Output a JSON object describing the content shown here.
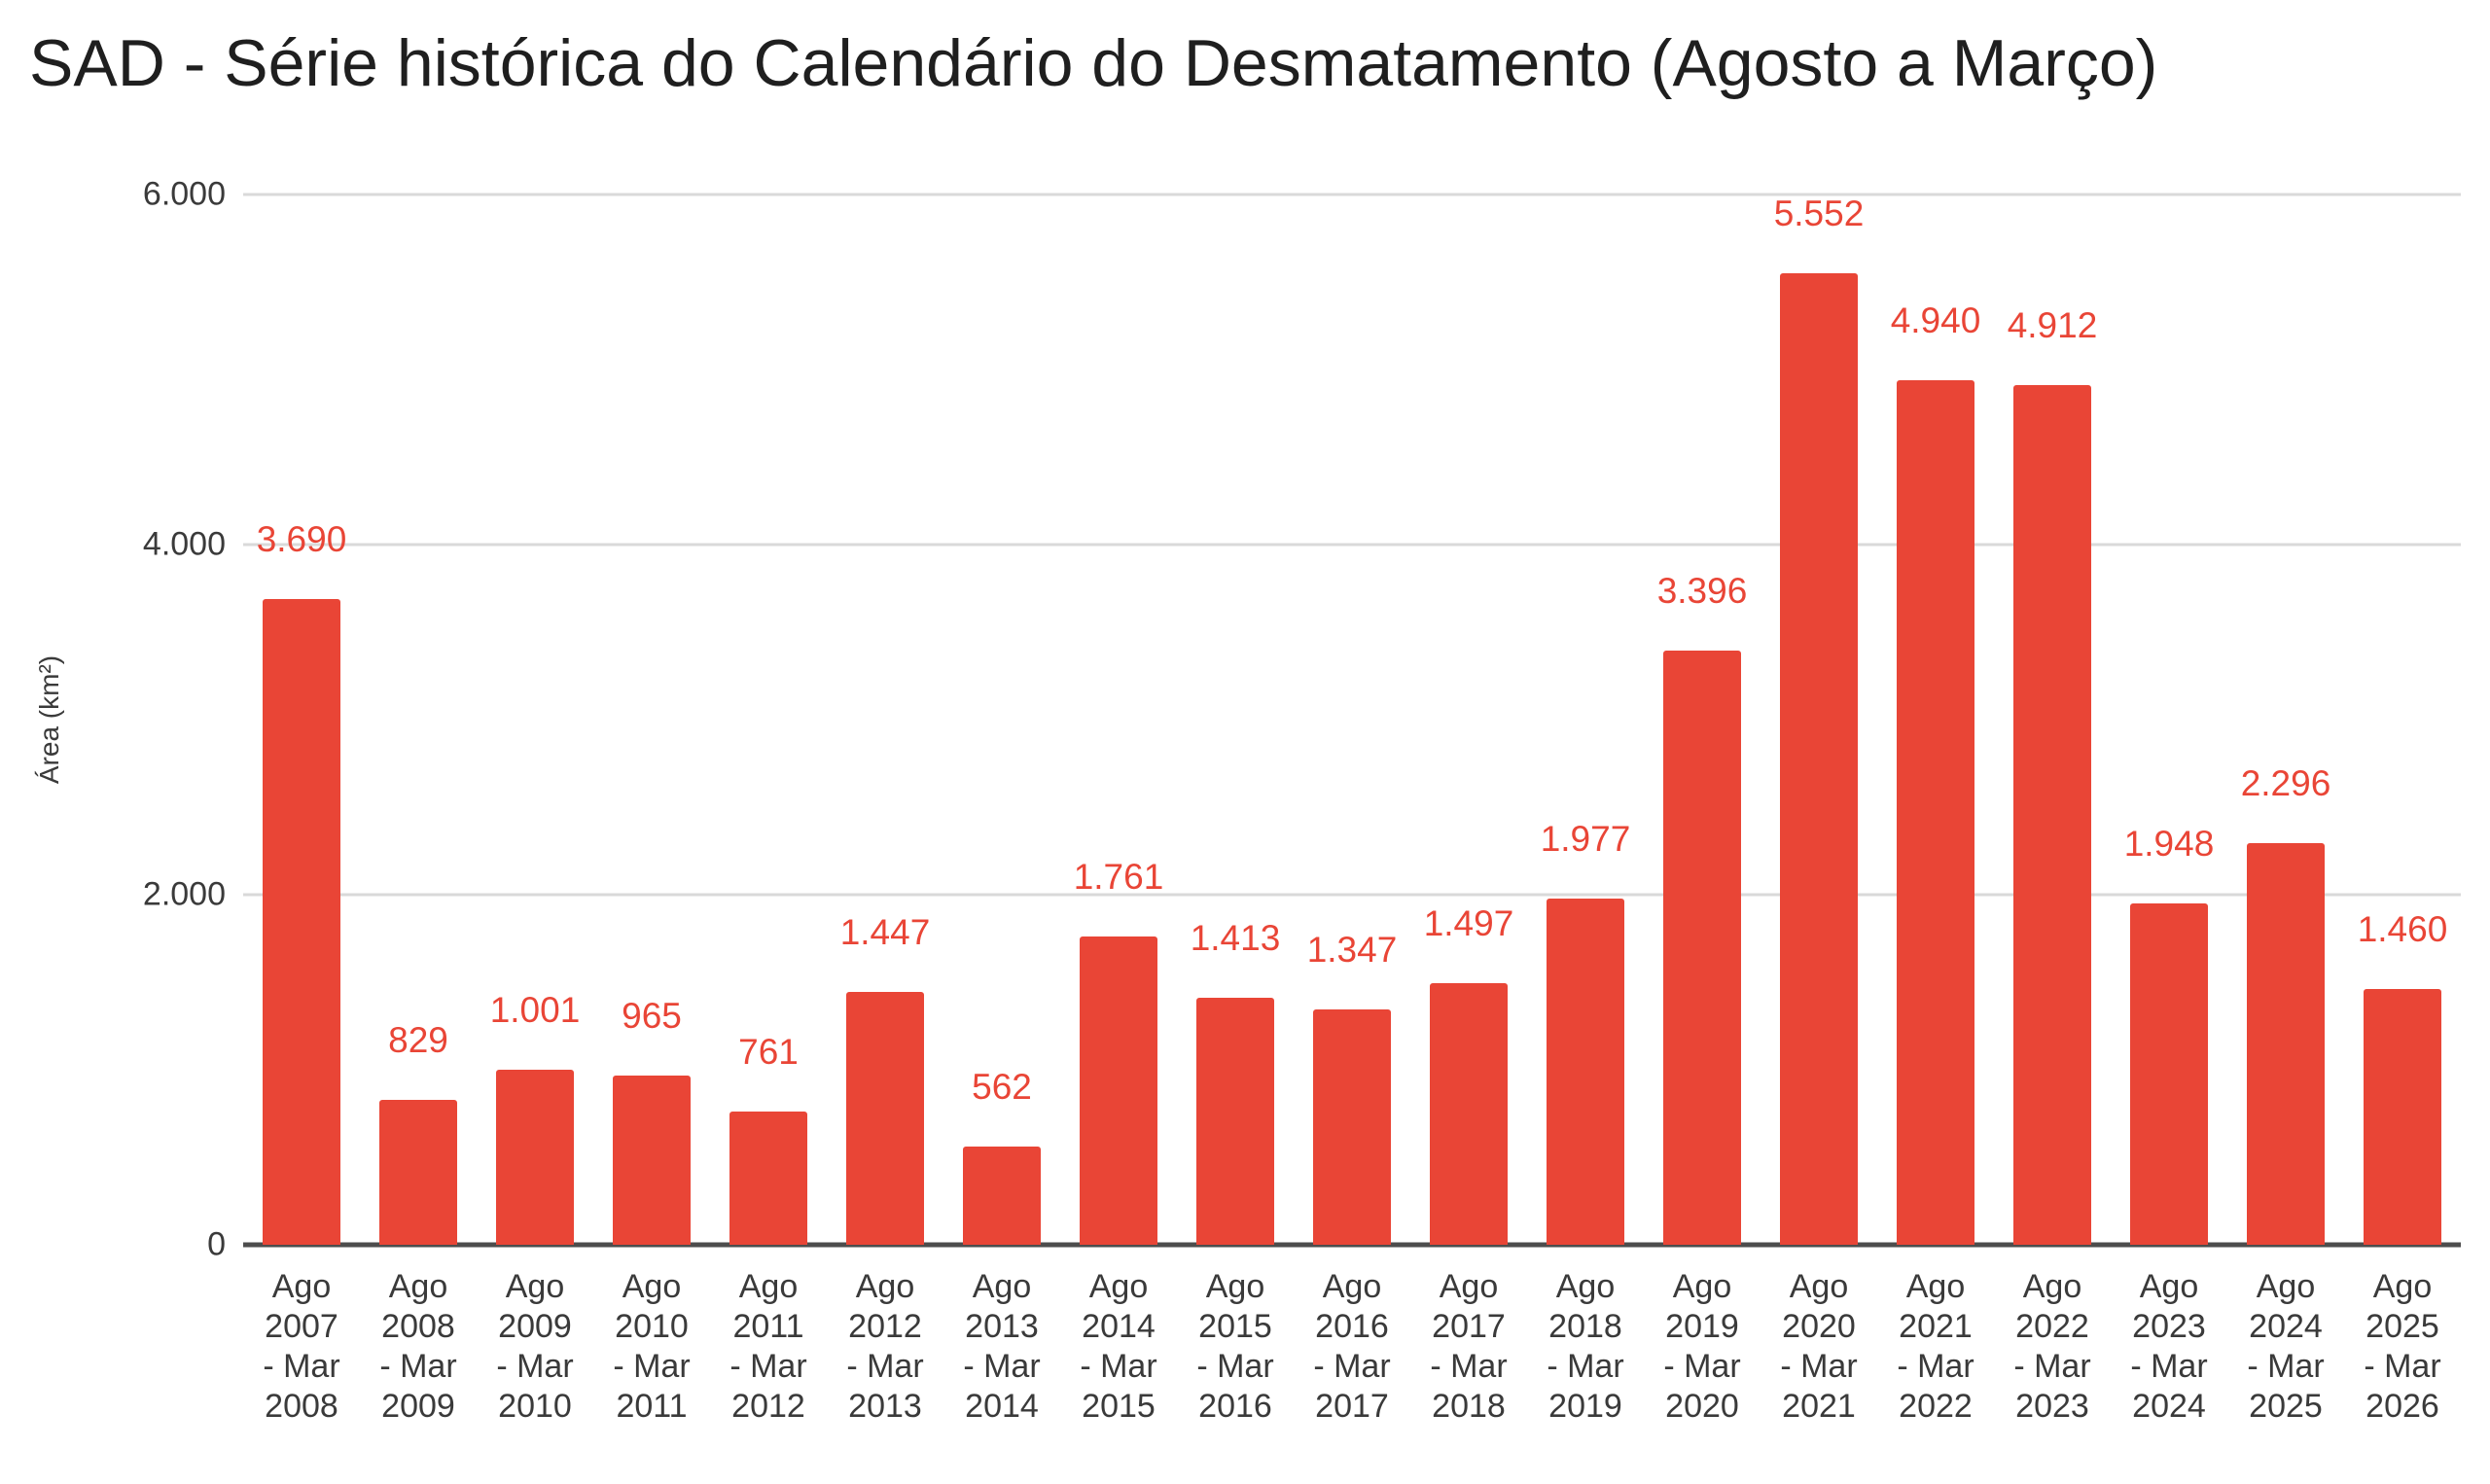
{
  "page": {
    "background": "#ffffff"
  },
  "chart_data": {
    "type": "bar",
    "title": "SAD - Série histórica do Calendário do Desmatamento (Agosto a Março)",
    "xlabel": "",
    "ylabel": "Área (km²)",
    "categories": [
      "Ago 2007 - Mar 2008",
      "Ago 2008 - Mar 2009",
      "Ago 2009 - Mar 2010",
      "Ago 2010 - Mar 2011",
      "Ago 2011 - Mar 2012",
      "Ago 2012 - Mar 2013",
      "Ago 2013 - Mar 2014",
      "Ago 2014 - Mar 2015",
      "Ago 2015 - Mar 2016",
      "Ago 2016 - Mar 2017",
      "Ago 2017 - Mar 2018",
      "Ago 2018 - Mar 2019",
      "Ago 2019 - Mar 2020",
      "Ago 2020 - Mar 2021",
      "Ago 2021 - Mar 2022",
      "Ago 2022 - Mar 2023",
      "Ago 2023 - Mar 2024",
      "Ago 2024 - Mar 2025",
      "Ago 2025 - Mar 2026"
    ],
    "values": [
      3690,
      829,
      1001,
      965,
      761,
      1447,
      562,
      1761,
      1413,
      1347,
      1497,
      1977,
      3396,
      5552,
      4940,
      4912,
      1948,
      2296,
      1460
    ],
    "value_labels": [
      "3.690",
      "829",
      "1.001",
      "965",
      "761",
      "1.447",
      "562",
      "1.761",
      "1.413",
      "1.347",
      "1.497",
      "1.977",
      "3.396",
      "5.552",
      "4.940",
      "4.912",
      "1.948",
      "2.296",
      "1.460"
    ],
    "y_tick_labels": [
      "0",
      "2.000",
      "4.000",
      "6.000"
    ],
    "y_tick_values": [
      0,
      2000,
      4000,
      6000
    ],
    "ylim": [
      0,
      6000
    ],
    "grid": true,
    "legend": "none",
    "colors": {
      "bar": "#e94536",
      "data_label": "#e94536",
      "title": "#1f1f1f",
      "axis_text": "#3a3a3a",
      "gridline": "#d9d9d9",
      "baseline": "#4d4d4d",
      "background": "#ffffff"
    }
  }
}
